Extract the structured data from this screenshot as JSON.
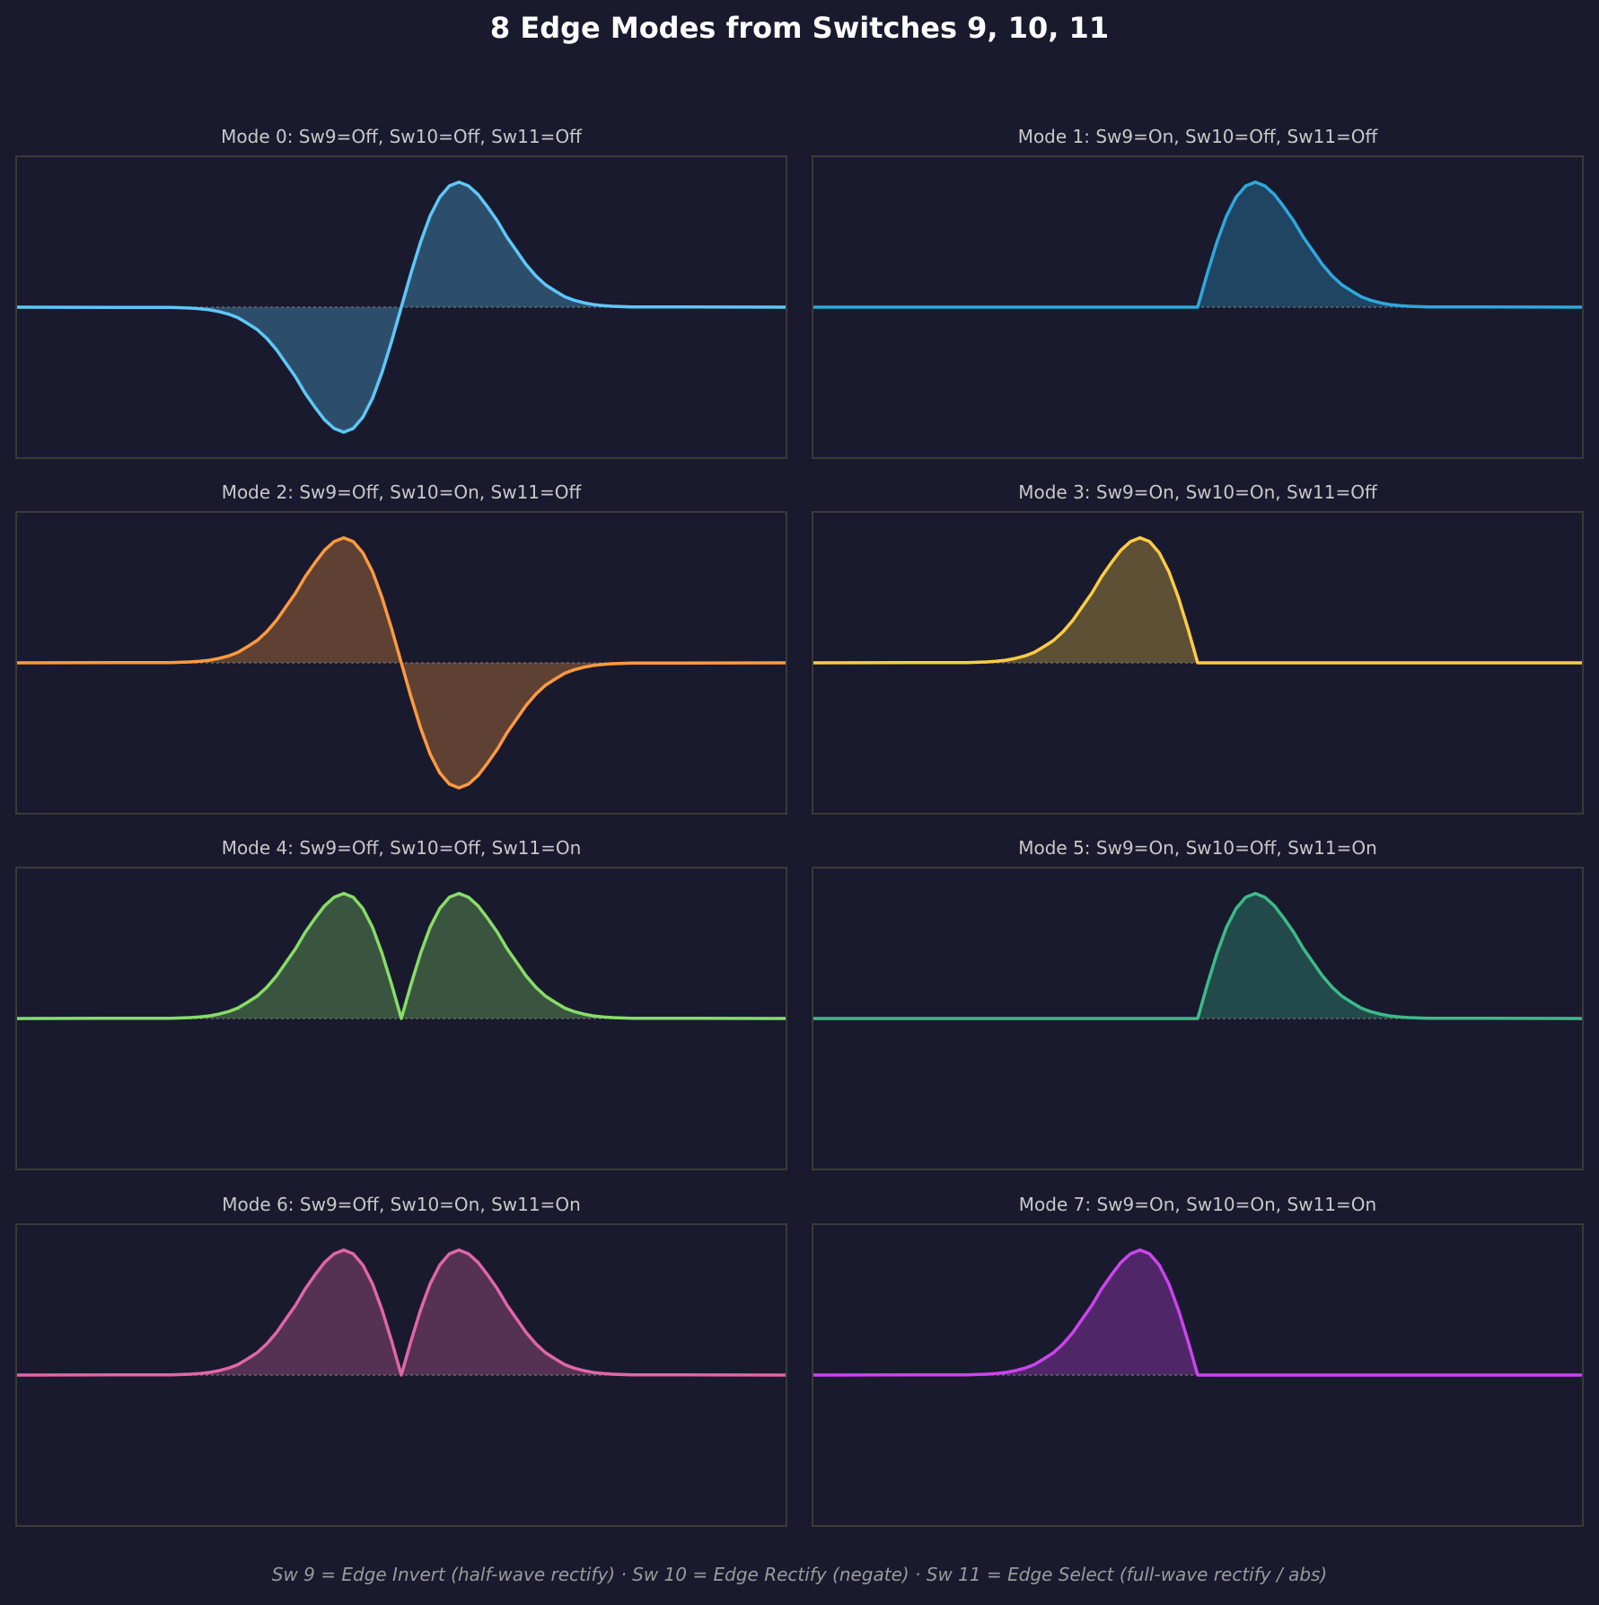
{
  "chart_data": {
    "title": "8 Edge Modes from Switches 9, 10, 11",
    "footer": "Sw 9 = Edge Invert (half-wave rectify)  ·  Sw 10 = Edge Rectify (negate)  ·  Sw 11 = Edge Select (full-wave rectify / abs)",
    "layout": "4 rows x 2 columns",
    "type": "area",
    "axes_visible": false,
    "grid": false,
    "zero_line": "dashed",
    "xlim": [
      -1,
      1
    ],
    "ylim": [
      -1.2,
      1.2
    ],
    "x": [
      -1,
      -0.6,
      -0.575,
      -0.55,
      -0.525,
      -0.5,
      -0.475,
      -0.45,
      -0.425,
      -0.4,
      -0.375,
      -0.35,
      -0.325,
      -0.3,
      -0.275,
      -0.25,
      -0.225,
      -0.2,
      -0.175,
      -0.15,
      -0.125,
      -0.1,
      -0.075,
      -0.05,
      -0.025,
      0,
      0.025,
      0.05,
      0.075,
      0.1,
      0.125,
      0.15,
      0.175,
      0.2,
      0.225,
      0.25,
      0.275,
      0.3,
      0.325,
      0.35,
      0.375,
      0.4,
      0.425,
      0.45,
      0.475,
      0.5,
      0.525,
      0.55,
      0.575,
      0.6,
      1
    ],
    "subplots": [
      {
        "title": "Mode 0: Sw9=Off, Sw10=Off, Sw11=Off",
        "color": "#5ec8f8",
        "values": [
          0,
          -0.002,
          -0.004,
          -0.007,
          -0.013,
          -0.021,
          -0.035,
          -0.055,
          -0.084,
          -0.13,
          -0.18,
          -0.25,
          -0.34,
          -0.45,
          -0.56,
          -0.69,
          -0.8,
          -0.9,
          -0.97,
          -1,
          -0.97,
          -0.88,
          -0.73,
          -0.52,
          -0.27,
          0,
          0.27,
          0.52,
          0.73,
          0.88,
          0.97,
          1,
          0.97,
          0.9,
          0.8,
          0.69,
          0.56,
          0.45,
          0.34,
          0.25,
          0.18,
          0.13,
          0.084,
          0.055,
          0.035,
          0.021,
          0.013,
          0.007,
          0.004,
          0.002,
          0
        ]
      },
      {
        "title": "Mode 1: Sw9=On, Sw10=Off, Sw11=Off",
        "color": "#2ea8dc",
        "values": [
          0,
          0,
          0,
          0,
          0,
          0,
          0,
          0,
          0,
          0,
          0,
          0,
          0,
          0,
          0,
          0,
          0,
          0,
          0,
          0,
          0,
          0,
          0,
          0,
          0,
          0,
          0.27,
          0.52,
          0.73,
          0.88,
          0.97,
          1,
          0.97,
          0.9,
          0.8,
          0.69,
          0.56,
          0.45,
          0.34,
          0.25,
          0.18,
          0.13,
          0.084,
          0.055,
          0.035,
          0.021,
          0.013,
          0.007,
          0.004,
          0.002,
          0
        ]
      },
      {
        "title": "Mode 2: Sw9=Off, Sw10=On, Sw11=Off",
        "color": "#ff9a40",
        "values": [
          0,
          0.002,
          0.004,
          0.007,
          0.013,
          0.021,
          0.035,
          0.055,
          0.084,
          0.13,
          0.18,
          0.25,
          0.34,
          0.45,
          0.56,
          0.69,
          0.8,
          0.9,
          0.97,
          1,
          0.97,
          0.88,
          0.73,
          0.52,
          0.27,
          0,
          -0.27,
          -0.52,
          -0.73,
          -0.88,
          -0.97,
          -1,
          -0.97,
          -0.9,
          -0.8,
          -0.69,
          -0.56,
          -0.45,
          -0.34,
          -0.25,
          -0.18,
          -0.13,
          -0.084,
          -0.055,
          -0.035,
          -0.021,
          -0.013,
          -0.007,
          -0.004,
          -0.002,
          0
        ]
      },
      {
        "title": "Mode 3: Sw9=On, Sw10=On, Sw11=Off",
        "color": "#ffcc44",
        "values": [
          0,
          0.002,
          0.004,
          0.007,
          0.013,
          0.021,
          0.035,
          0.055,
          0.084,
          0.13,
          0.18,
          0.25,
          0.34,
          0.45,
          0.56,
          0.69,
          0.8,
          0.9,
          0.97,
          1,
          0.97,
          0.88,
          0.73,
          0.52,
          0.27,
          0,
          0,
          0,
          0,
          0,
          0,
          0,
          0,
          0,
          0,
          0,
          0,
          0,
          0,
          0,
          0,
          0,
          0,
          0,
          0,
          0,
          0,
          0,
          0,
          0,
          0
        ]
      },
      {
        "title": "Mode 4: Sw9=Off, Sw10=Off, Sw11=On",
        "color": "#88dd66",
        "values": [
          0,
          0.002,
          0.004,
          0.007,
          0.013,
          0.021,
          0.035,
          0.055,
          0.084,
          0.13,
          0.18,
          0.25,
          0.34,
          0.45,
          0.56,
          0.69,
          0.8,
          0.9,
          0.97,
          1,
          0.97,
          0.88,
          0.73,
          0.52,
          0.27,
          0,
          0.27,
          0.52,
          0.73,
          0.88,
          0.97,
          1,
          0.97,
          0.9,
          0.8,
          0.69,
          0.56,
          0.45,
          0.34,
          0.25,
          0.18,
          0.13,
          0.084,
          0.055,
          0.035,
          0.021,
          0.013,
          0.007,
          0.004,
          0.002,
          0
        ]
      },
      {
        "title": "Mode 5: Sw9=On, Sw10=Off, Sw11=On",
        "color": "#3dba8a",
        "values": [
          0,
          0,
          0,
          0,
          0,
          0,
          0,
          0,
          0,
          0,
          0,
          0,
          0,
          0,
          0,
          0,
          0,
          0,
          0,
          0,
          0,
          0,
          0,
          0,
          0,
          0,
          0.27,
          0.52,
          0.73,
          0.88,
          0.97,
          1,
          0.97,
          0.9,
          0.8,
          0.69,
          0.56,
          0.45,
          0.34,
          0.25,
          0.18,
          0.13,
          0.084,
          0.055,
          0.035,
          0.021,
          0.013,
          0.007,
          0.004,
          0.002,
          0
        ]
      },
      {
        "title": "Mode 6: Sw9=Off, Sw10=On, Sw11=On",
        "color": "#e066a8",
        "values": [
          0,
          0.002,
          0.004,
          0.007,
          0.013,
          0.021,
          0.035,
          0.055,
          0.084,
          0.13,
          0.18,
          0.25,
          0.34,
          0.45,
          0.56,
          0.69,
          0.8,
          0.9,
          0.97,
          1,
          0.97,
          0.88,
          0.73,
          0.52,
          0.27,
          0,
          0.27,
          0.52,
          0.73,
          0.88,
          0.97,
          1,
          0.97,
          0.9,
          0.8,
          0.69,
          0.56,
          0.45,
          0.34,
          0.25,
          0.18,
          0.13,
          0.084,
          0.055,
          0.035,
          0.021,
          0.013,
          0.007,
          0.004,
          0.002,
          0
        ]
      },
      {
        "title": "Mode 7: Sw9=On, Sw10=On, Sw11=On",
        "color": "#cc44ee",
        "values": [
          0,
          0.002,
          0.004,
          0.007,
          0.013,
          0.021,
          0.035,
          0.055,
          0.084,
          0.13,
          0.18,
          0.25,
          0.34,
          0.45,
          0.56,
          0.69,
          0.8,
          0.9,
          0.97,
          1,
          0.97,
          0.88,
          0.73,
          0.52,
          0.27,
          0,
          0,
          0,
          0,
          0,
          0,
          0,
          0,
          0,
          0,
          0,
          0,
          0,
          0,
          0,
          0,
          0,
          0,
          0,
          0,
          0,
          0,
          0,
          0,
          0,
          0
        ]
      }
    ]
  }
}
